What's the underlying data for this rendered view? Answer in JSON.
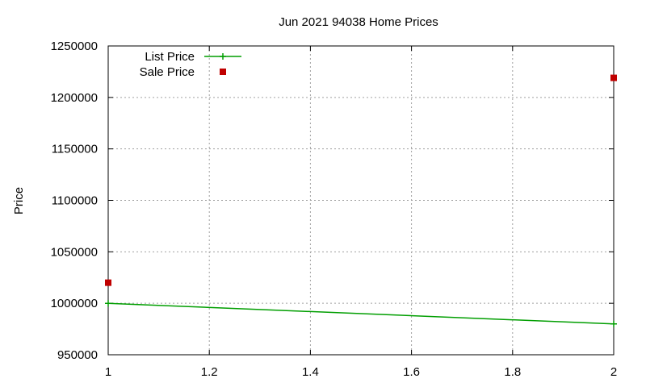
{
  "chart_data": {
    "type": "line",
    "title": "Jun 2021 94038 Home Prices",
    "xlabel": "",
    "ylabel": "Price",
    "xlim": [
      1,
      2
    ],
    "ylim": [
      950000,
      1250000
    ],
    "x_ticks": [
      "1",
      "1.2",
      "1.4",
      "1.6",
      "1.8",
      "2"
    ],
    "y_ticks": [
      "950000",
      "1000000",
      "1050000",
      "1100000",
      "1150000",
      "1200000",
      "1250000"
    ],
    "grid": true,
    "legend_position": "top-left",
    "series": [
      {
        "name": "List Price",
        "style": "linespoints",
        "marker": "plus",
        "color": "#009e00",
        "points": [
          {
            "x": 1,
            "y": 999950
          },
          {
            "x": 2,
            "y": 979950
          }
        ]
      },
      {
        "name": "Sale Price",
        "style": "points",
        "marker": "square",
        "color": "#c00000",
        "points": [
          {
            "x": 1,
            "y": 1020000
          },
          {
            "x": 2,
            "y": 1219000
          }
        ]
      }
    ]
  }
}
